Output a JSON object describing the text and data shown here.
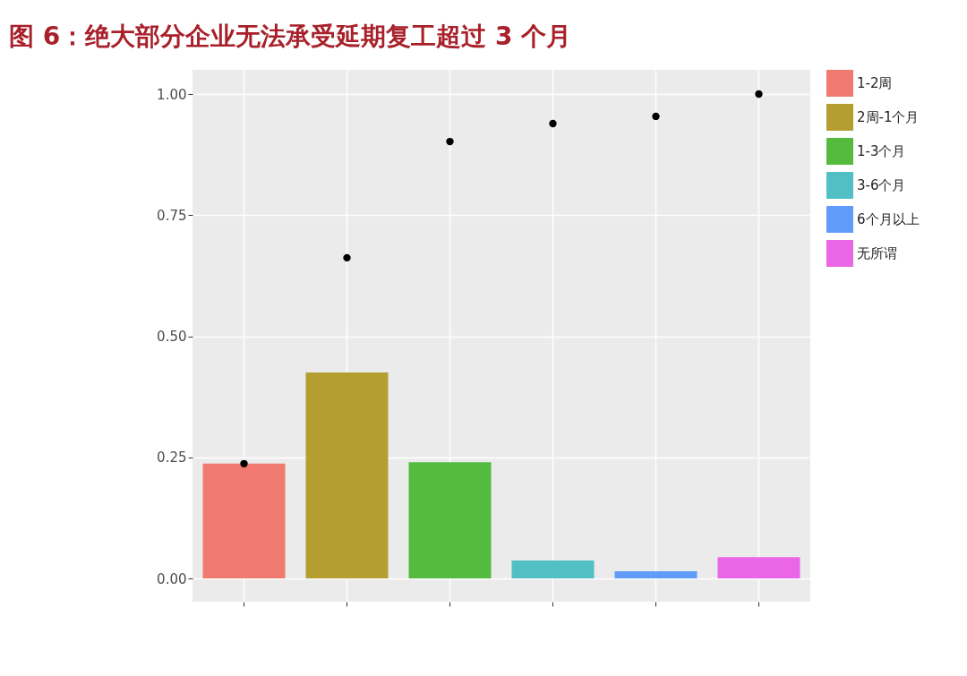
{
  "chart_data": {
    "type": "bar",
    "title": "图 6：绝大部分企业无法承受延期复工超过 3 个月",
    "categories": [
      null,
      null,
      null,
      null,
      null,
      null
    ],
    "series": [
      {
        "name": "1-2周",
        "color": "#f07a6f",
        "values": [
          0.237,
          null,
          null,
          null,
          null,
          null
        ]
      },
      {
        "name": "2周-1个月",
        "color": "#b49e32",
        "values": [
          null,
          0.425,
          null,
          null,
          null,
          null
        ]
      },
      {
        "name": "1-3个月",
        "color": "#55bb3e",
        "values": [
          null,
          null,
          0.24,
          null,
          null,
          null
        ]
      },
      {
        "name": "3-6个月",
        "color": "#50c0c4",
        "values": [
          null,
          null,
          null,
          0.037,
          null,
          null
        ]
      },
      {
        "name": "6个月以上",
        "color": "#629cfa",
        "values": [
          null,
          null,
          null,
          null,
          0.015,
          null
        ]
      },
      {
        "name": "无所谓",
        "color": "#ea66e6",
        "values": [
          null,
          null,
          null,
          null,
          null,
          0.044
        ]
      },
      {
        "type": "scatter",
        "color": "#000000",
        "marker": "circle",
        "values": [
          0.237,
          0.662,
          0.902,
          0.939,
          0.954,
          1
        ]
      }
    ],
    "ylim": [
      -0.048,
      1.05
    ],
    "yticks": [
      {
        "value": 0,
        "label": "0.00"
      },
      {
        "value": 0.25,
        "label": "0.25"
      },
      {
        "value": 0.5,
        "label": "0.50"
      },
      {
        "value": 0.75,
        "label": "0.75"
      },
      {
        "value": 1,
        "label": "1.00"
      }
    ],
    "tick_labels": "y",
    "grid": true,
    "legend": "right"
  }
}
